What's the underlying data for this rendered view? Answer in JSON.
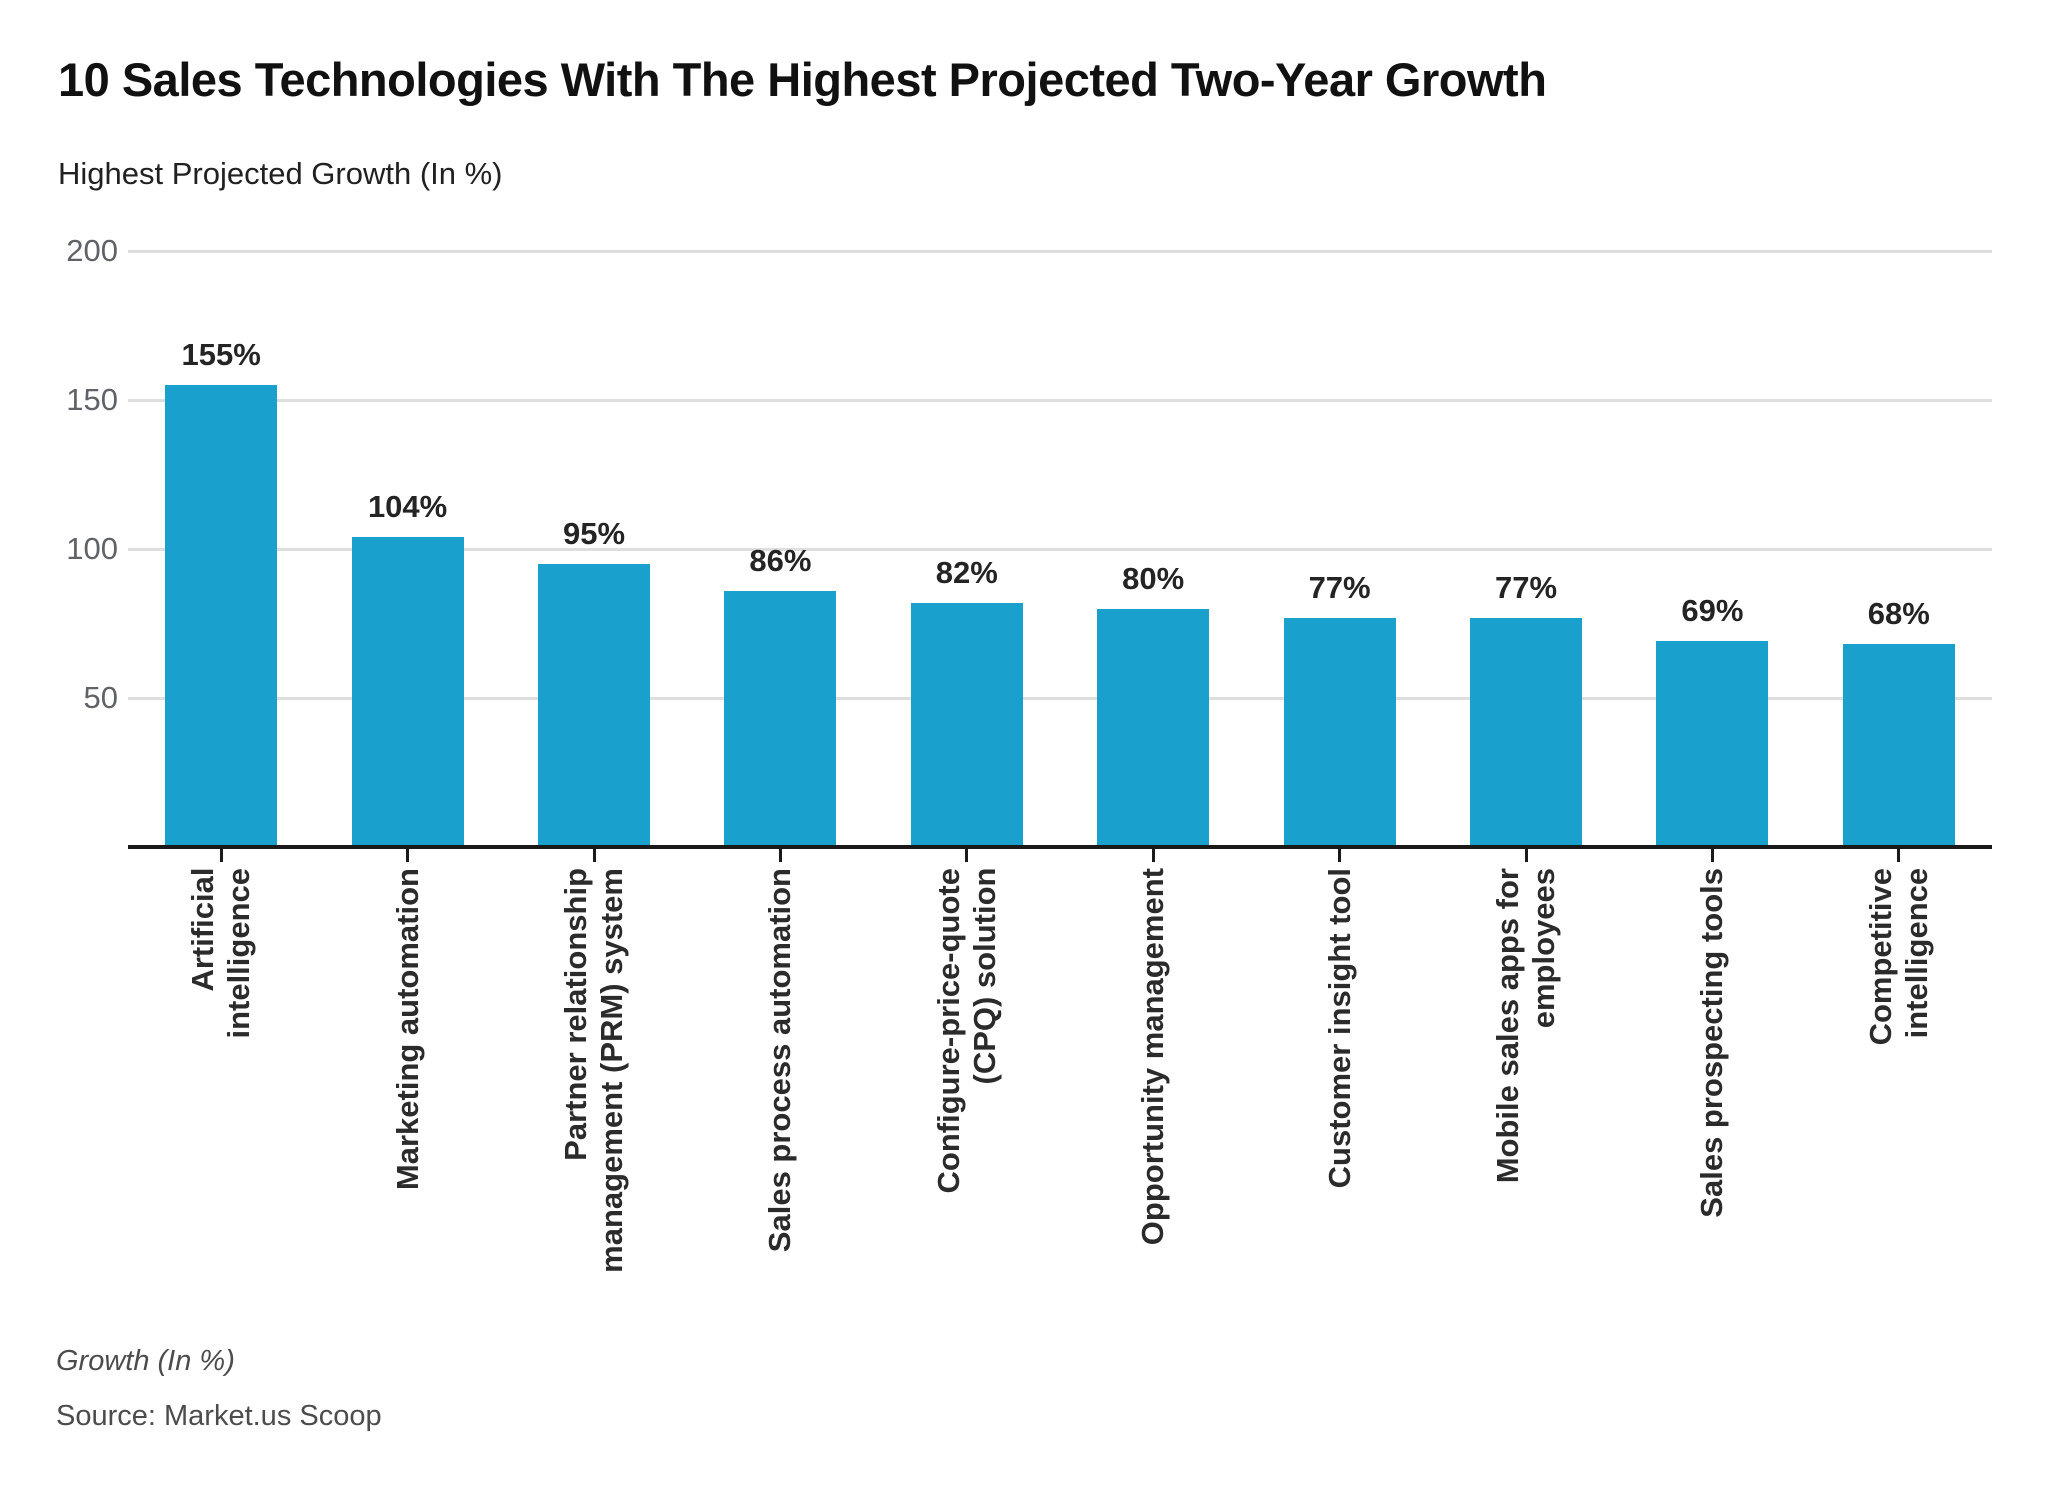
{
  "header": {
    "title": "10 Sales Technologies With The Highest Projected Two-Year Growth",
    "subtitle": "Highest Projected Growth (In %)"
  },
  "footer": {
    "axis_note": "Growth (In %)",
    "source": "Source: Market.us Scoop"
  },
  "chart_data": {
    "type": "bar",
    "title": "10 Sales Technologies With The Highest Projected Two-Year Growth",
    "subtitle": "Highest Projected Growth (In %)",
    "categories": [
      "Artificial\nintelligence",
      "Marketing automation",
      "Partner relationship\nmanagement (PRM) system",
      "Sales process automation",
      "Configure-price-quote\n(CPQ) solution",
      "Opportunity management",
      "Customer insight tool",
      "Mobile sales apps for\nemployees",
      "Sales prospecting tools",
      "Competitive\nintelligence"
    ],
    "values": [
      155,
      104,
      95,
      86,
      82,
      80,
      77,
      77,
      69,
      68
    ],
    "value_labels": [
      "155%",
      "104%",
      "95%",
      "86%",
      "82%",
      "80%",
      "77%",
      "77%",
      "69%",
      "68%"
    ],
    "xlabel": "Growth (In %)",
    "ylabel": "Highest Projected Growth (In %)",
    "ylim": [
      0,
      200
    ],
    "yticks": [
      50,
      100,
      150,
      200
    ],
    "grid": "horizontal",
    "legend": "none",
    "bar_color": "#1AA0CD",
    "source": "Source: Market.us Scoop"
  }
}
